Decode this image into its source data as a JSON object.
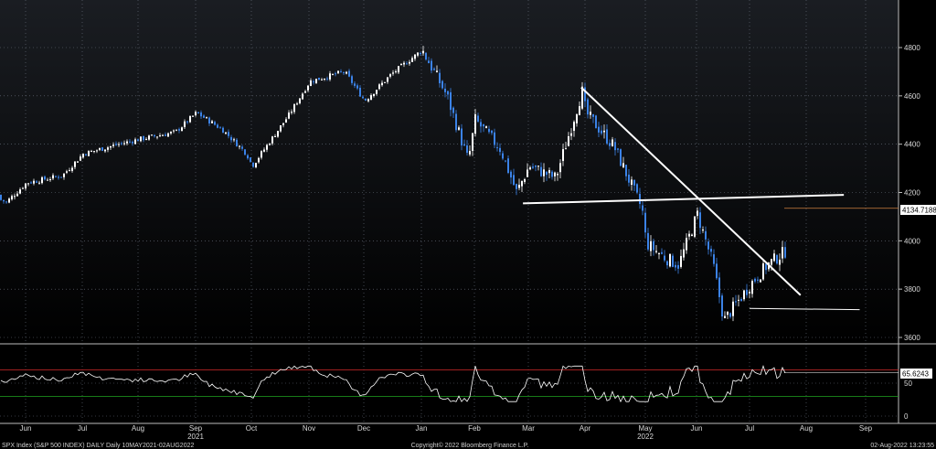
{
  "footer": {
    "left": "SPX Index (S&P 500 INDEX) DAILY  Daily 10MAY2021-02AUG2022",
    "center": "Copyright© 2022 Bloomberg Finance L.P.",
    "right": "02-Aug-2022 13:23:55"
  },
  "colors": {
    "background": "#000000",
    "up_candle": "#ffffff",
    "down_candle": "#3b82e6",
    "grid": "#6b7280",
    "trendline": "#ffffff",
    "last_price_line": "#d08040",
    "rsi_line": "#ffffff",
    "rsi_overbought_line": "#d22a2a",
    "rsi_oversold_line": "#1fa31f",
    "rsi_overbought_fill": "#e07a7a",
    "rsi_oversold_fill": "#40c040"
  },
  "chart_data": [
    {
      "type": "candlestick",
      "title": "",
      "series_name": "SPX Index",
      "x_ticks": [
        "Jun",
        "Jul",
        "Aug",
        "Sep",
        "Oct",
        "Nov",
        "Dec",
        "Jan",
        "Feb",
        "Mar",
        "Apr",
        "May",
        "Jun",
        "Jul",
        "Aug",
        "Sep"
      ],
      "year_labels": [
        {
          "label": "2021",
          "under": "Sep"
        },
        {
          "label": "2022",
          "under": "May"
        }
      ],
      "y_ticks": [
        3600,
        3800,
        4000,
        4200,
        4400,
        4600,
        4800
      ],
      "ylim": [
        3580,
        4840
      ],
      "grid": true,
      "last_price_label": "4134.7188",
      "last_price": 4134.72,
      "monthly_points": [
        {
          "month": "2021-05-10",
          "close": 4190
        },
        {
          "month": "2021-05-20",
          "close": 4160
        },
        {
          "month": "2021-06",
          "close": 4240
        },
        {
          "month": "2021-06-20",
          "close": 4270
        },
        {
          "month": "2021-07",
          "close": 4360
        },
        {
          "month": "2021-07-20",
          "close": 4400
        },
        {
          "month": "2021-08",
          "close": 4420
        },
        {
          "month": "2021-08-20",
          "close": 4450
        },
        {
          "month": "2021-09",
          "close": 4530
        },
        {
          "month": "2021-09-15",
          "close": 4460
        },
        {
          "month": "2021-09-28",
          "close": 4360
        },
        {
          "month": "2021-10",
          "close": 4310
        },
        {
          "month": "2021-10-20",
          "close": 4520
        },
        {
          "month": "2021-11",
          "close": 4660
        },
        {
          "month": "2021-11-20",
          "close": 4700
        },
        {
          "month": "2021-12",
          "close": 4580
        },
        {
          "month": "2021-12-15",
          "close": 4690
        },
        {
          "month": "2022-01",
          "close": 4790
        },
        {
          "month": "2022-01-15",
          "close": 4600
        },
        {
          "month": "2022-01-27",
          "close": 4330
        },
        {
          "month": "2022-02",
          "close": 4500
        },
        {
          "month": "2022-02-15",
          "close": 4380
        },
        {
          "month": "2022-02-24",
          "close": 4200
        },
        {
          "month": "2022-03",
          "close": 4310
        },
        {
          "month": "2022-03-15",
          "close": 4260
        },
        {
          "month": "2022-03-29",
          "close": 4620
        },
        {
          "month": "2022-04",
          "close": 4530
        },
        {
          "month": "2022-04-15",
          "close": 4390
        },
        {
          "month": "2022-04-29",
          "close": 4130
        },
        {
          "month": "2022-05",
          "close": 3990
        },
        {
          "month": "2022-05-12",
          "close": 3930
        },
        {
          "month": "2022-05-20",
          "close": 3900
        },
        {
          "month": "2022-06",
          "close": 4110
        },
        {
          "month": "2022-06-10",
          "close": 3900
        },
        {
          "month": "2022-06-16",
          "close": 3670
        },
        {
          "month": "2022-07",
          "close": 3820
        },
        {
          "month": "2022-07-10",
          "close": 3900
        },
        {
          "month": "2022-07-20",
          "close": 3960
        },
        {
          "month": "2022-08-01",
          "close": 4120
        }
      ],
      "annotations": [
        {
          "type": "trendline",
          "label": "",
          "from": {
            "x": "2022-02-28",
            "y": 4155
          },
          "to": {
            "x": "2022-08-20",
            "y": 4190
          }
        },
        {
          "type": "trendline",
          "label": "",
          "from": {
            "x": "2022-03-29",
            "y": 4635
          },
          "to": {
            "x": "2022-07-28",
            "y": 3775
          }
        },
        {
          "type": "trendline",
          "label": "",
          "from": {
            "x": "2022-07-01",
            "y": 3720
          },
          "to": {
            "x": "2022-08-28",
            "y": 3715
          }
        }
      ]
    },
    {
      "type": "line",
      "title": "",
      "series_name": "RSI",
      "y_ticks": [
        0,
        50
      ],
      "ylim": [
        -5,
        100
      ],
      "overbought": 70,
      "oversold": 30,
      "last_value_label": "65.6243",
      "last_value": 65.62
    }
  ]
}
